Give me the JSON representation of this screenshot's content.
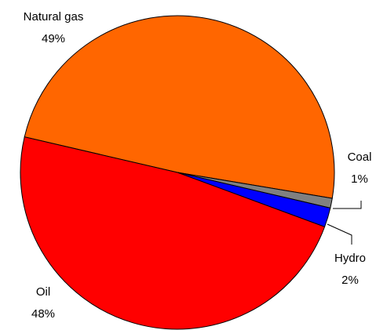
{
  "chart_data": {
    "type": "pie",
    "categories": [
      "Natural gas",
      "Coal",
      "Hydro",
      "Oil"
    ],
    "values": [
      49,
      1,
      2,
      48
    ],
    "value_labels": [
      "49%",
      "1%",
      "2%",
      "48%"
    ],
    "colors": [
      "#ff6600",
      "#808080",
      "#0000ff",
      "#ff0000"
    ]
  }
}
